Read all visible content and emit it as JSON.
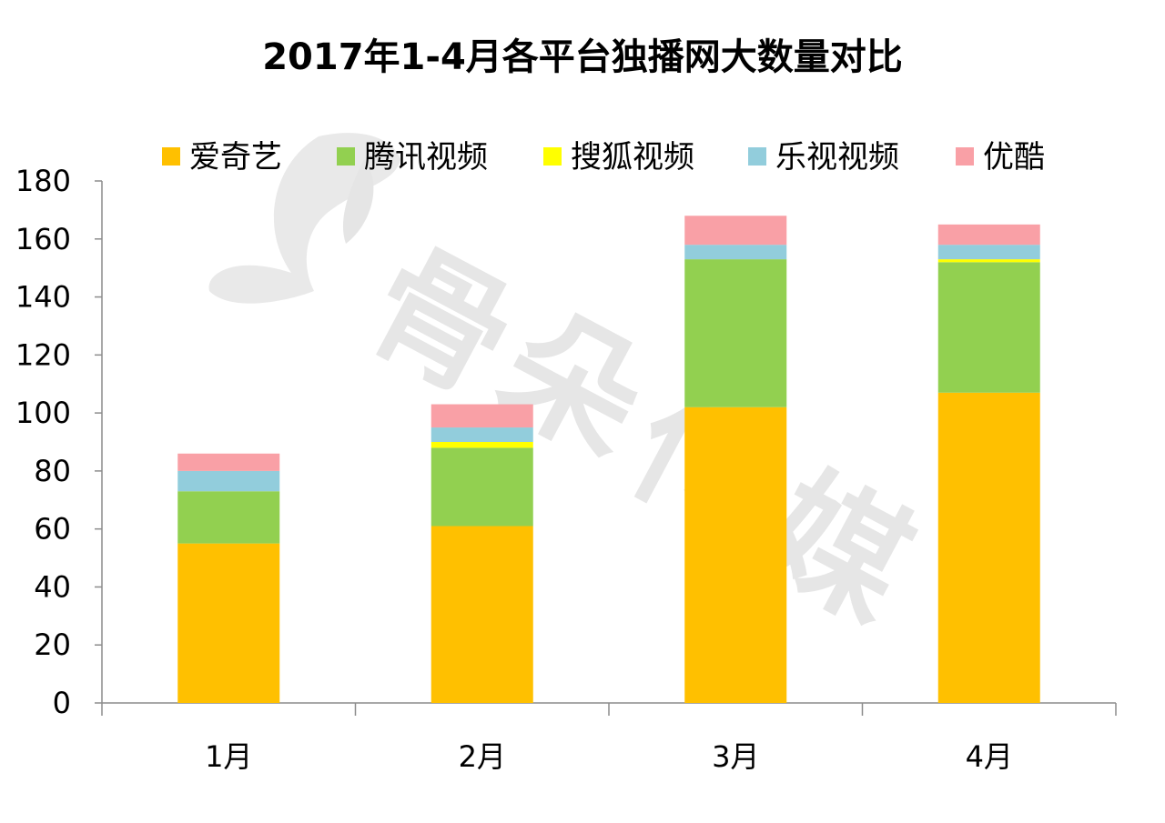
{
  "chart_data": {
    "type": "bar",
    "stacked": true,
    "title": "2017年1-4月各平台独播网大数量对比",
    "xlabel": "",
    "ylabel": "",
    "categories": [
      "1月",
      "2月",
      "3月",
      "4月"
    ],
    "ylim": [
      0,
      180
    ],
    "yticks": [
      0,
      20,
      40,
      60,
      80,
      100,
      120,
      140,
      160,
      180
    ],
    "grid": false,
    "legend_position": "top",
    "series": [
      {
        "name": "爱奇艺",
        "color": "#FFC000",
        "values": [
          55,
          61,
          102,
          107
        ]
      },
      {
        "name": "腾讯视频",
        "color": "#92D050",
        "values": [
          18,
          27,
          51,
          45
        ]
      },
      {
        "name": "搜狐视频",
        "color": "#FFFF00",
        "values": [
          0,
          2,
          0,
          1
        ]
      },
      {
        "name": "乐视视频",
        "color": "#92CDDC",
        "values": [
          7,
          5,
          5,
          5
        ]
      },
      {
        "name": "优酷",
        "color": "#F9A0A6",
        "values": [
          6,
          8,
          10,
          7
        ]
      }
    ]
  }
}
